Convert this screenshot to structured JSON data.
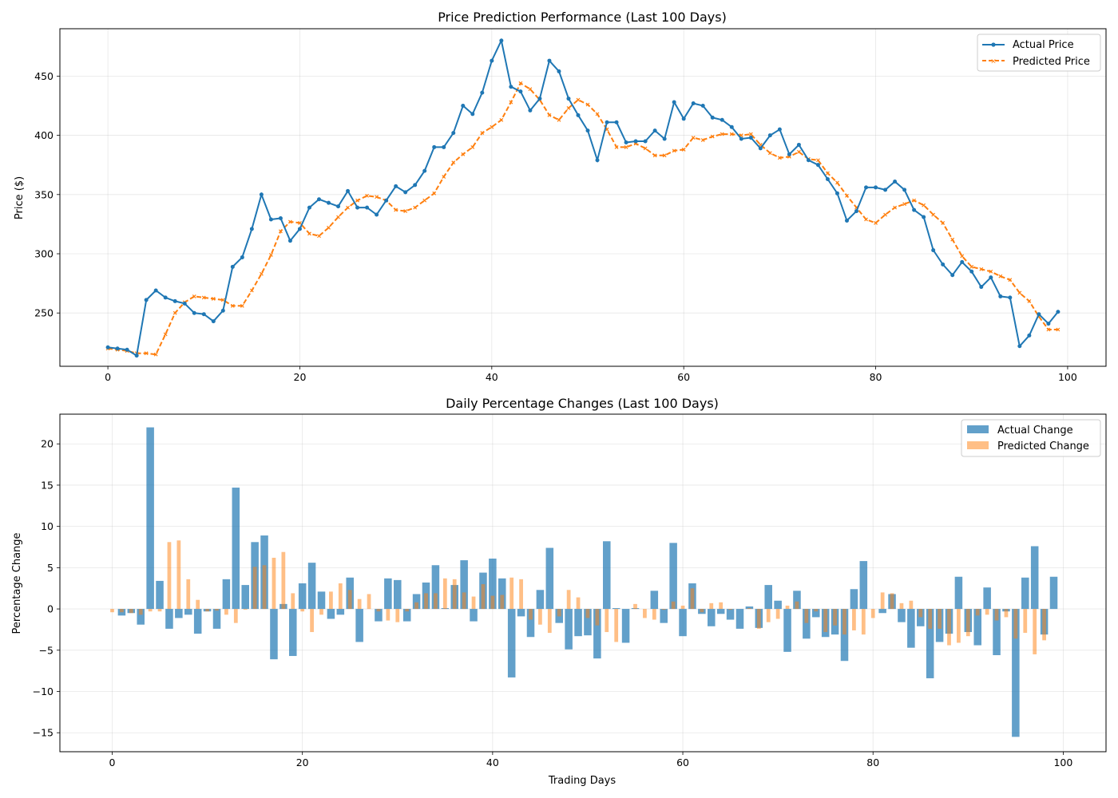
{
  "chart_data": [
    {
      "type": "line",
      "title": "Price Prediction Performance (Last 100 Days)",
      "xlabel": "",
      "ylabel": "Price ($)",
      "xlim": [
        -5,
        104
      ],
      "ylim": [
        205,
        490
      ],
      "xticks": [
        0,
        20,
        40,
        60,
        80,
        100
      ],
      "yticks": [
        250,
        300,
        350,
        400,
        450
      ],
      "grid": true,
      "legend_position": "top-right",
      "colors": {
        "actual": "#1f77b4",
        "predicted": "#ff7f0e"
      },
      "series": [
        {
          "name": "Actual Price",
          "style": "solid-dot",
          "values": [
            221,
            220,
            219,
            214,
            261,
            269,
            263,
            260,
            258,
            250,
            249,
            243,
            252,
            289,
            297,
            321,
            350,
            329,
            330,
            311,
            321,
            339,
            346,
            343,
            340,
            353,
            339,
            339,
            333,
            345,
            357,
            352,
            358,
            370,
            390,
            390,
            402,
            425,
            418,
            436,
            463,
            480,
            441,
            437,
            421,
            431,
            463,
            454,
            431,
            417,
            404,
            379,
            411,
            411,
            394,
            395,
            395,
            404,
            397,
            428,
            414,
            427,
            425,
            415,
            413,
            407,
            397,
            398,
            389,
            400,
            405,
            384,
            392,
            379,
            375,
            363,
            351,
            328,
            336,
            356,
            356,
            354,
            361,
            354,
            337,
            331,
            303,
            291,
            282,
            293,
            285,
            272,
            280,
            264,
            263,
            222,
            231,
            249,
            241,
            251
          ]
        },
        {
          "name": "Predicted Price",
          "style": "dashed-x",
          "values": [
            220,
            219,
            218,
            216,
            216,
            215,
            232,
            250,
            259,
            264,
            263,
            262,
            261,
            256,
            256,
            269,
            283,
            299,
            319,
            327,
            326,
            317,
            315,
            322,
            331,
            339,
            345,
            349,
            348,
            345,
            337,
            336,
            339,
            345,
            351,
            365,
            377,
            384,
            390,
            402,
            407,
            413,
            428,
            444,
            439,
            430,
            417,
            413,
            423,
            430,
            426,
            418,
            405,
            390,
            390,
            393,
            389,
            383,
            383,
            387,
            388,
            398,
            396,
            399,
            401,
            401,
            400,
            401,
            392,
            385,
            381,
            382,
            386,
            380,
            379,
            368,
            360,
            349,
            339,
            329,
            326,
            333,
            339,
            342,
            345,
            341,
            333,
            326,
            312,
            298,
            289,
            287,
            285,
            281,
            278,
            267,
            260,
            247,
            236,
            236
          ]
        }
      ]
    },
    {
      "type": "bar",
      "title": "Daily Percentage Changes (Last 100 Days)",
      "xlabel": "Trading Days",
      "ylabel": "Percentage Change",
      "xlim": [
        -5.5,
        104.5
      ],
      "ylim": [
        -17.3,
        23.6
      ],
      "xticks": [
        0,
        20,
        40,
        60,
        80,
        100
      ],
      "yticks": [
        -15,
        -10,
        -5,
        0,
        5,
        10,
        15,
        20
      ],
      "grid": true,
      "legend_position": "top-right",
      "colors": {
        "actual": "#1f77b4",
        "predicted": "#ff7f0e"
      },
      "series": [
        {
          "name": "Actual Change",
          "values": [
            0,
            -0.8,
            -0.5,
            -1.9,
            22,
            3.4,
            -2.4,
            -1.1,
            -0.7,
            -3.0,
            -0.3,
            -2.4,
            3.6,
            14.7,
            2.9,
            8.1,
            8.9,
            -6.1,
            0.6,
            -5.7,
            3.1,
            5.6,
            2.1,
            -1.2,
            -0.7,
            3.8,
            -4.0,
            0,
            -1.5,
            3.7,
            3.5,
            -1.5,
            1.8,
            3.2,
            5.3,
            0.1,
            2.9,
            5.9,
            -1.5,
            4.4,
            6.1,
            3.7,
            -8.3,
            -0.9,
            -3.4,
            2.3,
            7.4,
            -1.7,
            -4.9,
            -3.3,
            -3.2,
            -6.0,
            8.2,
            0.1,
            -4.1,
            0.1,
            0,
            2.2,
            -1.7,
            8.0,
            -3.3,
            3.1,
            -0.6,
            -2.1,
            -0.6,
            -1.3,
            -2.4,
            0.3,
            -2.3,
            2.9,
            1.0,
            -5.2,
            2.2,
            -3.6,
            -1.0,
            -3.4,
            -3.1,
            -6.3,
            2.4,
            5.8,
            0,
            -0.5,
            1.8,
            -1.6,
            -4.7,
            -2.1,
            -8.4,
            -4.0,
            -3.0,
            3.9,
            -2.8,
            -4.4,
            2.6,
            -5.6,
            -0.3,
            -15.5,
            3.8,
            7.6,
            -3.1,
            3.9
          ]
        },
        {
          "name": "Predicted Change",
          "values": [
            -0.4,
            -0.4,
            -0.5,
            -0.7,
            -0.3,
            -0.3,
            8.1,
            8.3,
            3.6,
            1.1,
            -0.3,
            -0.2,
            -0.7,
            -1.7,
            -0.1,
            5.1,
            5.3,
            6.2,
            6.9,
            1.9,
            -0.3,
            -2.8,
            -0.7,
            2.1,
            3.1,
            2.3,
            1.2,
            1.8,
            -0.3,
            -1.4,
            -1.6,
            -0.3,
            0.8,
            1.9,
            1.9,
            3.7,
            3.6,
            2.0,
            1.5,
            3.0,
            1.6,
            1.7,
            3.8,
            3.6,
            -1.3,
            -1.9,
            -2.9,
            -0.9,
            2.3,
            1.4,
            -1.1,
            -2.0,
            -2.8,
            -4.0,
            0,
            0.6,
            -1.1,
            -1.3,
            -0.1,
            0.9,
            0.4,
            2.5,
            -0.4,
            0.7,
            0.8,
            -0.1,
            0,
            0.1,
            -2.4,
            -1.6,
            -1.2,
            0.4,
            0.9,
            -1.7,
            -0.3,
            -2.8,
            -2.0,
            -3.1,
            -2.6,
            -3.1,
            -1.1,
            2.0,
            1.9,
            0.7,
            1.0,
            -1.0,
            -2.4,
            -2.4,
            -4.4,
            -4.1,
            -3.3,
            -0.8,
            -0.7,
            -1.4,
            -1.0,
            -3.6,
            -2.9,
            -5.5,
            -3.8,
            0
          ]
        }
      ]
    }
  ]
}
